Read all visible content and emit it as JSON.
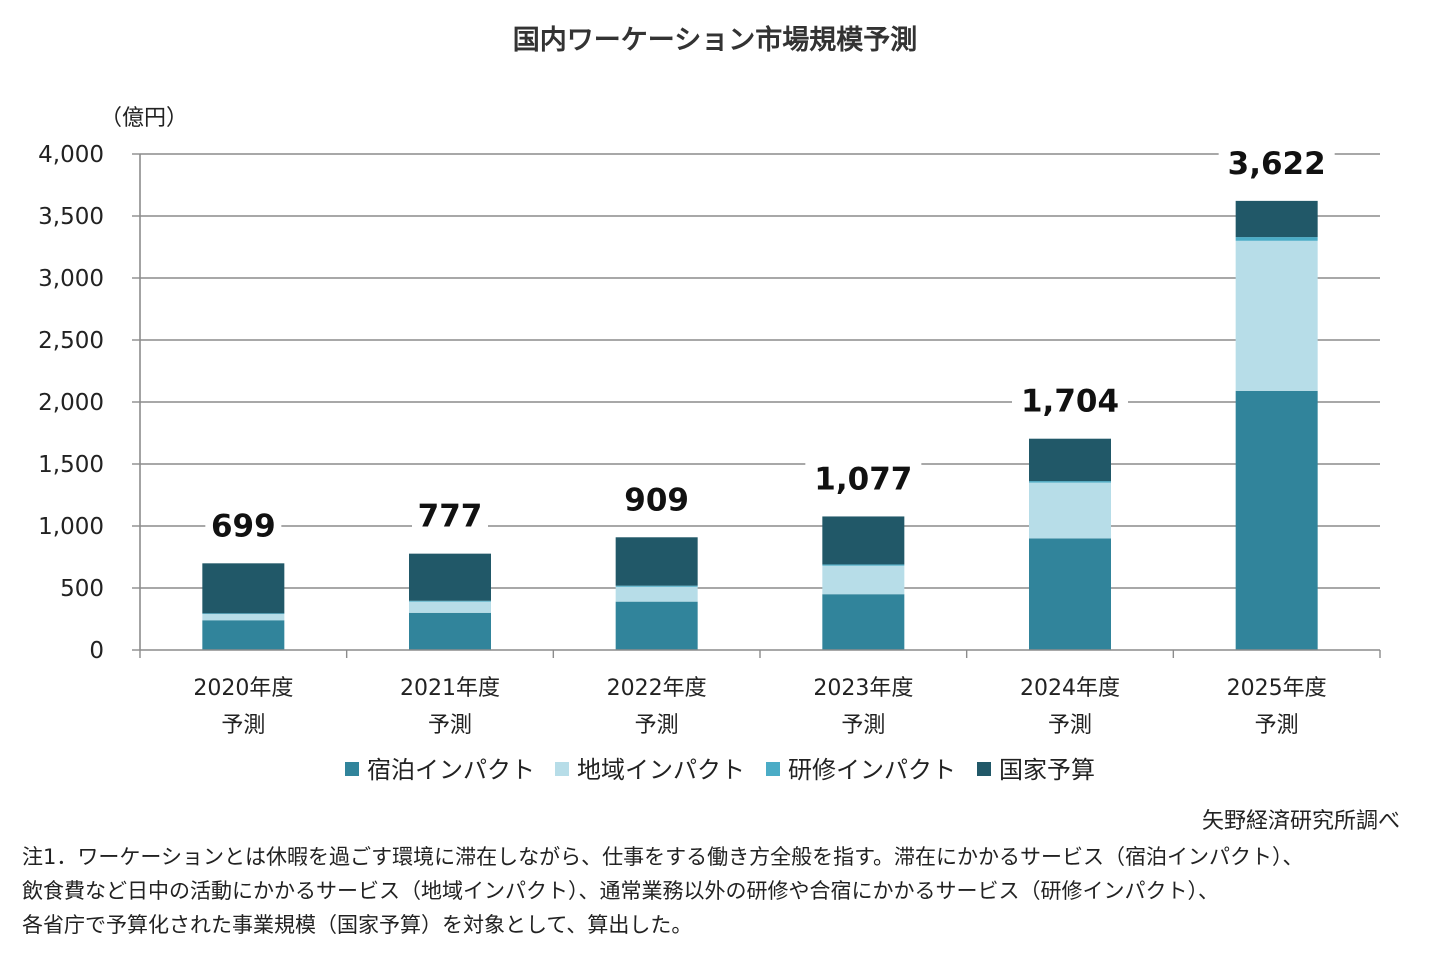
{
  "chart_data": {
    "type": "bar",
    "stacked": true,
    "title": "国内ワーケーション市場規模予測",
    "ylabel": "（億円）",
    "xlabel": "",
    "ylim": [
      0,
      4000
    ],
    "yticks": [
      0,
      500,
      1000,
      1500,
      2000,
      2500,
      3000,
      3500,
      4000
    ],
    "ytick_labels": [
      "0",
      "500",
      "1,000",
      "1,500",
      "2,000",
      "2,500",
      "3,000",
      "3,500",
      "4,000"
    ],
    "grid": true,
    "legend_position": "bottom",
    "categories": [
      [
        "2020年度",
        "予測"
      ],
      [
        "2021年度",
        "予測"
      ],
      [
        "2022年度",
        "予測"
      ],
      [
        "2023年度",
        "予測"
      ],
      [
        "2024年度",
        "予測"
      ],
      [
        "2025年度",
        "予測"
      ]
    ],
    "series": [
      {
        "name": "宿泊インパクト",
        "color": "#31849b",
        "values": [
          240,
          300,
          390,
          450,
          900,
          2090
        ]
      },
      {
        "name": "地域インパクト",
        "color": "#b7dde8",
        "values": [
          50,
          90,
          120,
          230,
          450,
          1210
        ]
      },
      {
        "name": "研修インパクト",
        "color": "#4bacc6",
        "values": [
          6,
          7,
          9,
          10,
          12,
          30
        ]
      },
      {
        "name": "国家予算",
        "color": "#215868",
        "values": [
          403,
          380,
          390,
          387,
          342,
          292
        ]
      }
    ],
    "totals": [
      699,
      777,
      909,
      1077,
      1704,
      3622
    ],
    "total_labels": [
      "699",
      "777",
      "909",
      "1,077",
      "1,704",
      "3,622"
    ]
  },
  "source": "矢野経済研究所調べ",
  "note_lines": [
    "注1．ワーケーションとは休暇を過ごす環境に滞在しながら、仕事をする働き方全般を指す。滞在にかかるサービス（宿泊インパクト）、",
    "飲食費など日中の活動にかかるサービス（地域インパクト）、通常業務以外の研修や合宿にかかるサービス（研修インパクト）、",
    "各省庁で予算化された事業規模（国家予算）を対象として、算出した。"
  ]
}
